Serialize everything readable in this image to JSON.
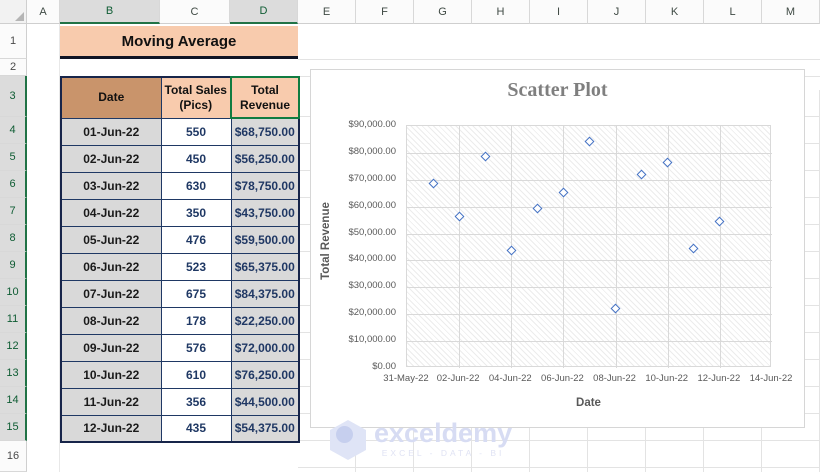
{
  "sheet": {
    "columns": [
      {
        "label": "A",
        "selected": false
      },
      {
        "label": "B",
        "selected": true
      },
      {
        "label": "C",
        "selected": false
      },
      {
        "label": "D",
        "selected": true
      },
      {
        "label": "E",
        "selected": false
      },
      {
        "label": "F",
        "selected": false
      },
      {
        "label": "G",
        "selected": false
      },
      {
        "label": "H",
        "selected": false
      },
      {
        "label": "I",
        "selected": false
      },
      {
        "label": "J",
        "selected": false
      },
      {
        "label": "K",
        "selected": false
      },
      {
        "label": "L",
        "selected": false
      },
      {
        "label": "M",
        "selected": false
      }
    ],
    "rows": [
      {
        "label": "1",
        "selected": false
      },
      {
        "label": "2",
        "selected": false
      },
      {
        "label": "3",
        "selected": true
      },
      {
        "label": "4",
        "selected": true
      },
      {
        "label": "5",
        "selected": true
      },
      {
        "label": "6",
        "selected": true
      },
      {
        "label": "7",
        "selected": true
      },
      {
        "label": "8",
        "selected": true
      },
      {
        "label": "9",
        "selected": true
      },
      {
        "label": "10",
        "selected": true
      },
      {
        "label": "11",
        "selected": true
      },
      {
        "label": "12",
        "selected": true
      },
      {
        "label": "13",
        "selected": true
      },
      {
        "label": "14",
        "selected": true
      },
      {
        "label": "15",
        "selected": true
      },
      {
        "label": "16",
        "selected": false
      }
    ]
  },
  "title_banner": "Moving Average",
  "table": {
    "headers": [
      "Date",
      "Total Sales (Pics)",
      "Total Revenue"
    ],
    "rows": [
      [
        "01-Jun-22",
        "550",
        "$68,750.00"
      ],
      [
        "02-Jun-22",
        "450",
        "$56,250.00"
      ],
      [
        "03-Jun-22",
        "630",
        "$78,750.00"
      ],
      [
        "04-Jun-22",
        "350",
        "$43,750.00"
      ],
      [
        "05-Jun-22",
        "476",
        "$59,500.00"
      ],
      [
        "06-Jun-22",
        "523",
        "$65,375.00"
      ],
      [
        "07-Jun-22",
        "675",
        "$84,375.00"
      ],
      [
        "08-Jun-22",
        "178",
        "$22,250.00"
      ],
      [
        "09-Jun-22",
        "576",
        "$72,000.00"
      ],
      [
        "10-Jun-22",
        "610",
        "$76,250.00"
      ],
      [
        "11-Jun-22",
        "356",
        "$44,500.00"
      ],
      [
        "12-Jun-22",
        "435",
        "$54,375.00"
      ]
    ]
  },
  "chart_data": {
    "type": "scatter",
    "title": "Scatter Plot",
    "xlabel": "Date",
    "ylabel": "Total Revenue",
    "x_tick_labels": [
      "31-May-22",
      "02-Jun-22",
      "04-Jun-22",
      "06-Jun-22",
      "08-Jun-22",
      "10-Jun-22",
      "12-Jun-22",
      "14-Jun-22"
    ],
    "y_tick_labels": [
      "$90,000.00",
      "$80,000.00",
      "$70,000.00",
      "$60,000.00",
      "$50,000.00",
      "$40,000.00",
      "$30,000.00",
      "$20,000.00",
      "$10,000.00",
      "$0.00"
    ],
    "ylim": [
      0,
      90000
    ],
    "x_range_days": 14,
    "grid": true,
    "legend": "none",
    "marker_style": "open-diamond",
    "marker_color": "#4472C4",
    "points": [
      {
        "date": "01-Jun-22",
        "day": 1,
        "revenue": 68750
      },
      {
        "date": "02-Jun-22",
        "day": 2,
        "revenue": 56250
      },
      {
        "date": "03-Jun-22",
        "day": 3,
        "revenue": 78750
      },
      {
        "date": "04-Jun-22",
        "day": 4,
        "revenue": 43750
      },
      {
        "date": "05-Jun-22",
        "day": 5,
        "revenue": 59500
      },
      {
        "date": "06-Jun-22",
        "day": 6,
        "revenue": 65375
      },
      {
        "date": "07-Jun-22",
        "day": 7,
        "revenue": 84375
      },
      {
        "date": "08-Jun-22",
        "day": 8,
        "revenue": 22250
      },
      {
        "date": "09-Jun-22",
        "day": 9,
        "revenue": 72000
      },
      {
        "date": "10-Jun-22",
        "day": 10,
        "revenue": 76250
      },
      {
        "date": "11-Jun-22",
        "day": 11,
        "revenue": 44500
      },
      {
        "date": "12-Jun-22",
        "day": 12,
        "revenue": 54375
      }
    ]
  },
  "watermark": {
    "name": "exceldemy",
    "tagline": "EXCEL - DATA - BI"
  },
  "colors": {
    "banner_bg": "#F8CBAD",
    "header_date_bg": "#C9946B",
    "header_orange_bg": "#F8CBAD",
    "cell_gray_bg": "#D9D9D9",
    "cell_border": "#1F3864",
    "selection_green": "#107C41",
    "marker_blue": "#4472C4",
    "axis_text": "#595959",
    "chart_title_gray": "#7F7F7F"
  }
}
